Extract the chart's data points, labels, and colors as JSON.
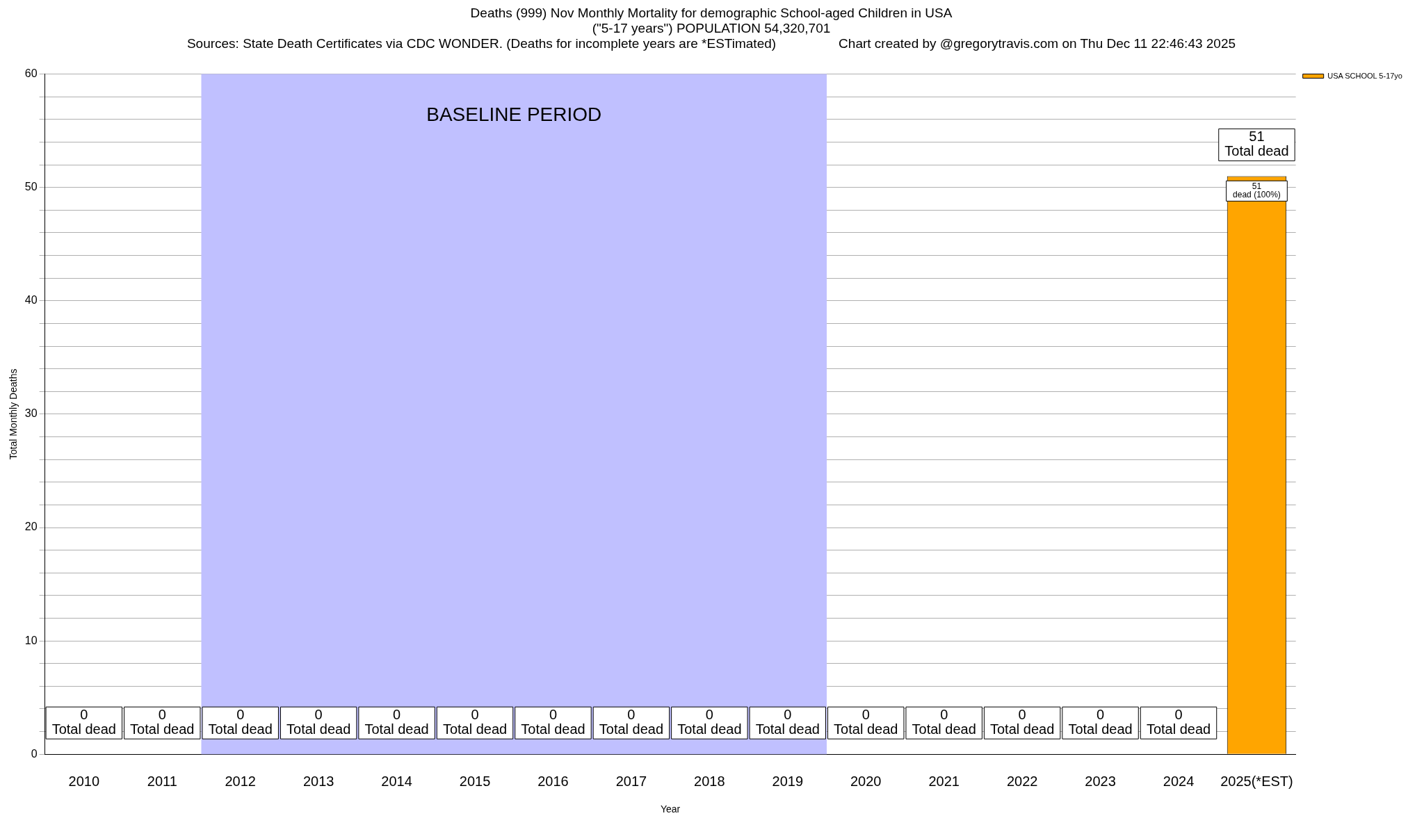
{
  "chart_data": {
    "type": "bar",
    "title": "Deaths (999) Nov Monthly Mortality for demographic School-aged Children in USA",
    "subtitle": "(\"5-17 years\") POPULATION 54,320,701",
    "annotations": [
      "Sources: State Death Certificates via CDC WONDER. (Deaths for incomplete years are *ESTimated)",
      "Chart created by @gregorytravis.com on Thu Dec 11 22:46:43 2025",
      {
        "text": "51\ndead (100%)",
        "x": "2025(*EST)",
        "y": 51
      }
    ],
    "xlabel": "Year",
    "ylabel": "Total Monthly Deaths",
    "categories": [
      "2010",
      "2011",
      "2012",
      "2013",
      "2014",
      "2015",
      "2016",
      "2017",
      "2018",
      "2019",
      "2020",
      "2021",
      "2022",
      "2023",
      "2024",
      "2025(*EST)"
    ],
    "series": [
      {
        "name": "USA SCHOOL 5-17yo",
        "color": "#ffa500",
        "values": [
          0,
          0,
          0,
          0,
          0,
          0,
          0,
          0,
          0,
          0,
          0,
          0,
          0,
          0,
          0,
          51
        ],
        "value_labels": [
          "0\nTotal dead",
          "0\nTotal dead",
          "0\nTotal dead",
          "0\nTotal dead",
          "0\nTotal dead",
          "0\nTotal dead",
          "0\nTotal dead",
          "0\nTotal dead",
          "0\nTotal dead",
          "0\nTotal dead",
          "0\nTotal dead",
          "0\nTotal dead",
          "0\nTotal dead",
          "0\nTotal dead",
          "0\nTotal dead",
          "51\nTotal dead"
        ]
      }
    ],
    "bands": [
      {
        "axis": "x",
        "from": "2012",
        "to": "2019",
        "label": "BASELINE PERIOD",
        "color": "#c0c0ff"
      }
    ],
    "ylim": [
      0,
      60
    ],
    "yticks": [
      0,
      {
        "value": 2,
        "label": null
      },
      {
        "value": 4,
        "label": null
      },
      {
        "value": 6,
        "label": null
      },
      {
        "value": 8,
        "label": null
      },
      10,
      {
        "value": 12,
        "label": null
      },
      {
        "value": 14,
        "label": null
      },
      {
        "value": 16,
        "label": null
      },
      {
        "value": 18,
        "label": null
      },
      20,
      {
        "value": 22,
        "label": null
      },
      {
        "value": 24,
        "label": null
      },
      {
        "value": 26,
        "label": null
      },
      {
        "value": 28,
        "label": null
      },
      30,
      {
        "value": 32,
        "label": null
      },
      {
        "value": 34,
        "label": null
      },
      {
        "value": 36,
        "label": null
      },
      {
        "value": 38,
        "label": null
      },
      40,
      {
        "value": 42,
        "label": null
      },
      {
        "value": 44,
        "label": null
      },
      {
        "value": 46,
        "label": null
      },
      {
        "value": 48,
        "label": null
      },
      50,
      {
        "value": 52,
        "label": null
      },
      {
        "value": 54,
        "label": null
      },
      {
        "value": 56,
        "label": null
      },
      {
        "value": 58,
        "label": null
      },
      60
    ],
    "grid": "y",
    "legend": "top right"
  }
}
